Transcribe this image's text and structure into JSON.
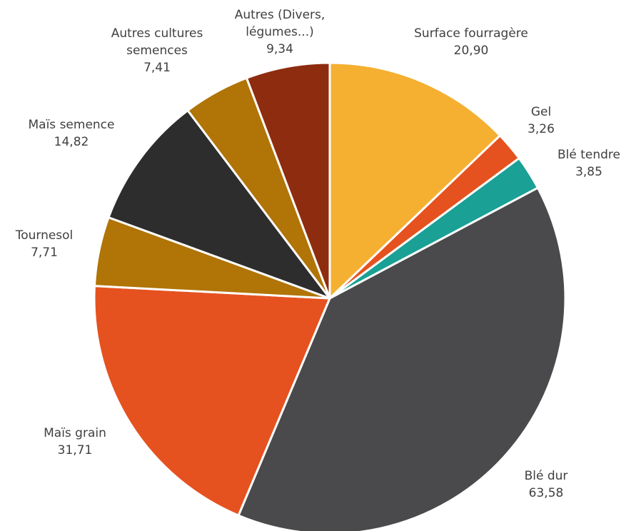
{
  "chart_data": {
    "type": "pie",
    "start_angle_deg": 0,
    "direction": "clockwise",
    "series": [
      {
        "name": "Surface fourragère",
        "label_lines": [
          "Surface fourragère"
        ],
        "value": 20.9,
        "display": "20,90",
        "color": "#F5B031"
      },
      {
        "name": "Gel",
        "label_lines": [
          "Gel"
        ],
        "value": 3.26,
        "display": "3,26",
        "color": "#E5521F"
      },
      {
        "name": "Blé tendre",
        "label_lines": [
          "Blé tendre"
        ],
        "value": 3.85,
        "display": "3,85",
        "color": "#1AA095"
      },
      {
        "name": "Blé dur",
        "label_lines": [
          "Blé dur"
        ],
        "value": 63.58,
        "display": "63,58",
        "color": "#4A4A4C"
      },
      {
        "name": "Maïs grain",
        "label_lines": [
          "Maïs grain"
        ],
        "value": 31.71,
        "display": "31,71",
        "color": "#E5521F"
      },
      {
        "name": "Tournesol",
        "label_lines": [
          "Tournesol"
        ],
        "value": 7.71,
        "display": "7,71",
        "color": "#B07407"
      },
      {
        "name": "Maïs semence",
        "label_lines": [
          "Maïs semence"
        ],
        "value": 14.82,
        "display": "14,82",
        "color": "#2D2D2D"
      },
      {
        "name": "Autres cultures semences",
        "label_lines": [
          "Autres cultures",
          "semences"
        ],
        "value": 7.41,
        "display": "7,41",
        "color": "#B07407"
      },
      {
        "name": "Autres (Divers, légumes...)",
        "label_lines": [
          "Autres (Divers,",
          "légumes...)"
        ],
        "value": 9.34,
        "display": "9,34",
        "color": "#8E2C0F"
      }
    ]
  }
}
